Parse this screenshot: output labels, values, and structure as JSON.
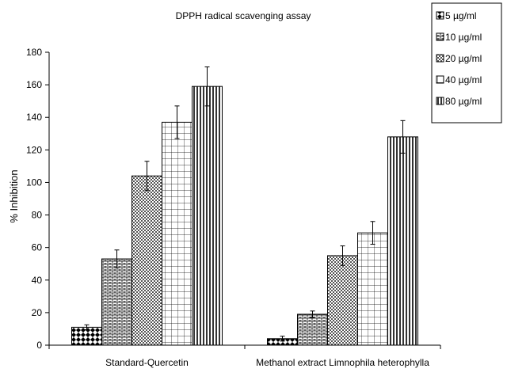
{
  "chart_data": {
    "type": "bar",
    "title": "DPPH radical scavenging assay",
    "xlabel": "",
    "ylabel": "% Inhibition",
    "ylim": [
      0,
      180
    ],
    "yticks": [
      0,
      20,
      40,
      60,
      80,
      100,
      120,
      140,
      160,
      180
    ],
    "grid": false,
    "legend_position": "top-right",
    "categories": [
      "Standard-Quercetin",
      "Methanol extract Limnophila heterophylla"
    ],
    "series": [
      {
        "name": "5 µg/ml",
        "pattern": "diamond",
        "values": [
          11,
          4
        ],
        "errors": [
          1.5,
          1.5
        ]
      },
      {
        "name": "10 µg/ml",
        "pattern": "brick",
        "values": [
          53,
          19
        ],
        "errors": [
          5.5,
          2
        ]
      },
      {
        "name": "20 µg/ml",
        "pattern": "dots",
        "values": [
          104,
          55
        ],
        "errors": [
          9,
          6
        ]
      },
      {
        "name": "40 µg/ml",
        "pattern": "grid",
        "values": [
          137,
          69
        ],
        "errors": [
          10,
          7
        ]
      },
      {
        "name": "80 µg/ml",
        "pattern": "vertical",
        "values": [
          159,
          128
        ],
        "errors": [
          12,
          10
        ]
      }
    ]
  }
}
